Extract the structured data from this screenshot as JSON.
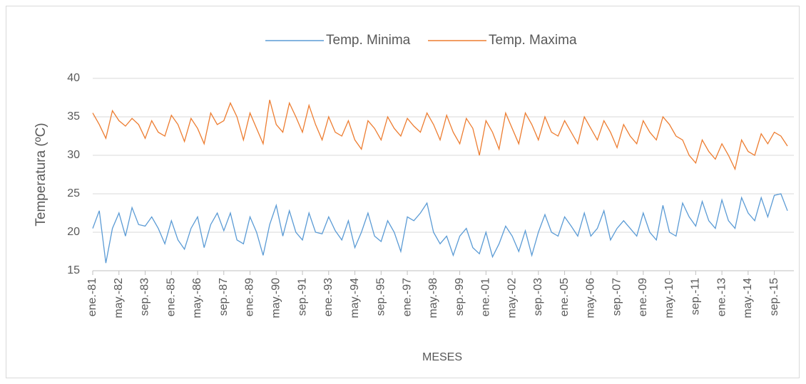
{
  "chart_data": {
    "type": "line",
    "x_label": "MESES",
    "y_label": "Temperatura (ºC)",
    "categories": [
      "ene.-81",
      null,
      null,
      null,
      "may.-82",
      null,
      null,
      null,
      "sep.-83",
      null,
      null,
      null,
      "ene.-85",
      null,
      null,
      null,
      "may.-86",
      null,
      null,
      null,
      "sep.-87",
      null,
      null,
      null,
      "ene.-89",
      null,
      null,
      null,
      "may.-90",
      null,
      null,
      null,
      "sep.-91",
      null,
      null,
      null,
      "ene.-93",
      null,
      null,
      null,
      "may.-94",
      null,
      null,
      null,
      "sep.-95",
      null,
      null,
      null,
      "ene.-97",
      null,
      null,
      null,
      "may.-98",
      null,
      null,
      null,
      "sep.-99",
      null,
      null,
      null,
      "ene.-01",
      null,
      null,
      null,
      "may.-02",
      null,
      null,
      null,
      "sep.-03",
      null,
      null,
      null,
      "ene.-05",
      null,
      null,
      null,
      "may.-06",
      null,
      null,
      null,
      "sep.-07",
      null,
      null,
      null,
      "ene.-09",
      null,
      null,
      null,
      "may.-10",
      null,
      null,
      null,
      "sep.-11",
      null,
      null,
      null,
      "ene.-13",
      null,
      null,
      null,
      "may.-14",
      null,
      null,
      null,
      "sep.-15",
      null,
      null
    ],
    "series": [
      {
        "name": "Temp. Minima",
        "color": "#5b9bd5",
        "values": [
          20.5,
          22.8,
          16.0,
          20.5,
          22.5,
          19.5,
          23.2,
          21.0,
          20.8,
          22.0,
          20.5,
          18.5,
          21.5,
          19.0,
          17.8,
          20.5,
          22.0,
          18.0,
          21.0,
          22.5,
          20.2,
          22.5,
          19.0,
          18.5,
          22.0,
          20.0,
          17.0,
          21.0,
          23.5,
          19.5,
          22.8,
          20.0,
          19.0,
          22.5,
          20.0,
          19.8,
          22.0,
          20.2,
          19.0,
          21.5,
          18.0,
          20.0,
          22.5,
          19.5,
          18.8,
          21.5,
          20.0,
          17.5,
          22.0,
          21.5,
          22.5,
          23.8,
          20.0,
          18.5,
          19.5,
          17.0,
          19.5,
          20.5,
          18.0,
          17.2,
          20.0,
          16.8,
          18.5,
          20.8,
          19.5,
          17.5,
          20.2,
          17.0,
          20.0,
          22.3,
          20.0,
          19.5,
          22.0,
          20.8,
          19.5,
          22.5,
          19.5,
          20.5,
          22.8,
          19.0,
          20.5,
          21.5,
          20.5,
          19.5,
          22.5,
          20.0,
          19.0,
          23.5,
          20.0,
          19.5,
          23.8,
          22.0,
          20.8,
          24.0,
          21.5,
          20.5,
          24.2,
          21.5,
          20.5,
          24.5,
          22.5,
          21.5,
          24.5,
          22.0,
          24.8,
          25.0,
          22.8
        ]
      },
      {
        "name": "Temp. Maxima",
        "color": "#ed7d31",
        "values": [
          35.5,
          34.0,
          32.2,
          35.8,
          34.5,
          33.8,
          34.8,
          34.0,
          32.2,
          34.5,
          33.0,
          32.5,
          35.2,
          34.0,
          31.8,
          34.8,
          33.5,
          31.5,
          35.5,
          34.0,
          34.5,
          36.8,
          35.0,
          32.0,
          35.5,
          33.5,
          31.5,
          37.2,
          34.0,
          33.0,
          36.8,
          35.0,
          33.0,
          36.5,
          34.0,
          32.0,
          35.0,
          33.0,
          32.5,
          34.5,
          32.0,
          30.8,
          34.5,
          33.5,
          32.0,
          35.0,
          33.5,
          32.5,
          34.8,
          33.8,
          33.0,
          35.5,
          34.0,
          32.0,
          35.2,
          33.0,
          31.5,
          34.8,
          33.5,
          30.0,
          34.5,
          33.0,
          30.8,
          35.5,
          33.5,
          31.5,
          35.5,
          34.0,
          32.0,
          35.0,
          33.0,
          32.5,
          34.5,
          33.0,
          31.5,
          35.0,
          33.5,
          32.0,
          34.5,
          33.0,
          31.0,
          34.0,
          32.5,
          31.5,
          34.5,
          33.0,
          32.0,
          35.0,
          34.0,
          32.5,
          32.0,
          30.0,
          29.0,
          32.0,
          30.5,
          29.5,
          31.5,
          30.0,
          28.2,
          32.0,
          30.5,
          30.0,
          32.8,
          31.5,
          33.0,
          32.5,
          31.2
        ]
      }
    ],
    "ylim": [
      15,
      40
    ],
    "yticks": [
      15,
      20,
      25,
      30,
      35,
      40
    ],
    "grid": true,
    "legend": "top"
  }
}
